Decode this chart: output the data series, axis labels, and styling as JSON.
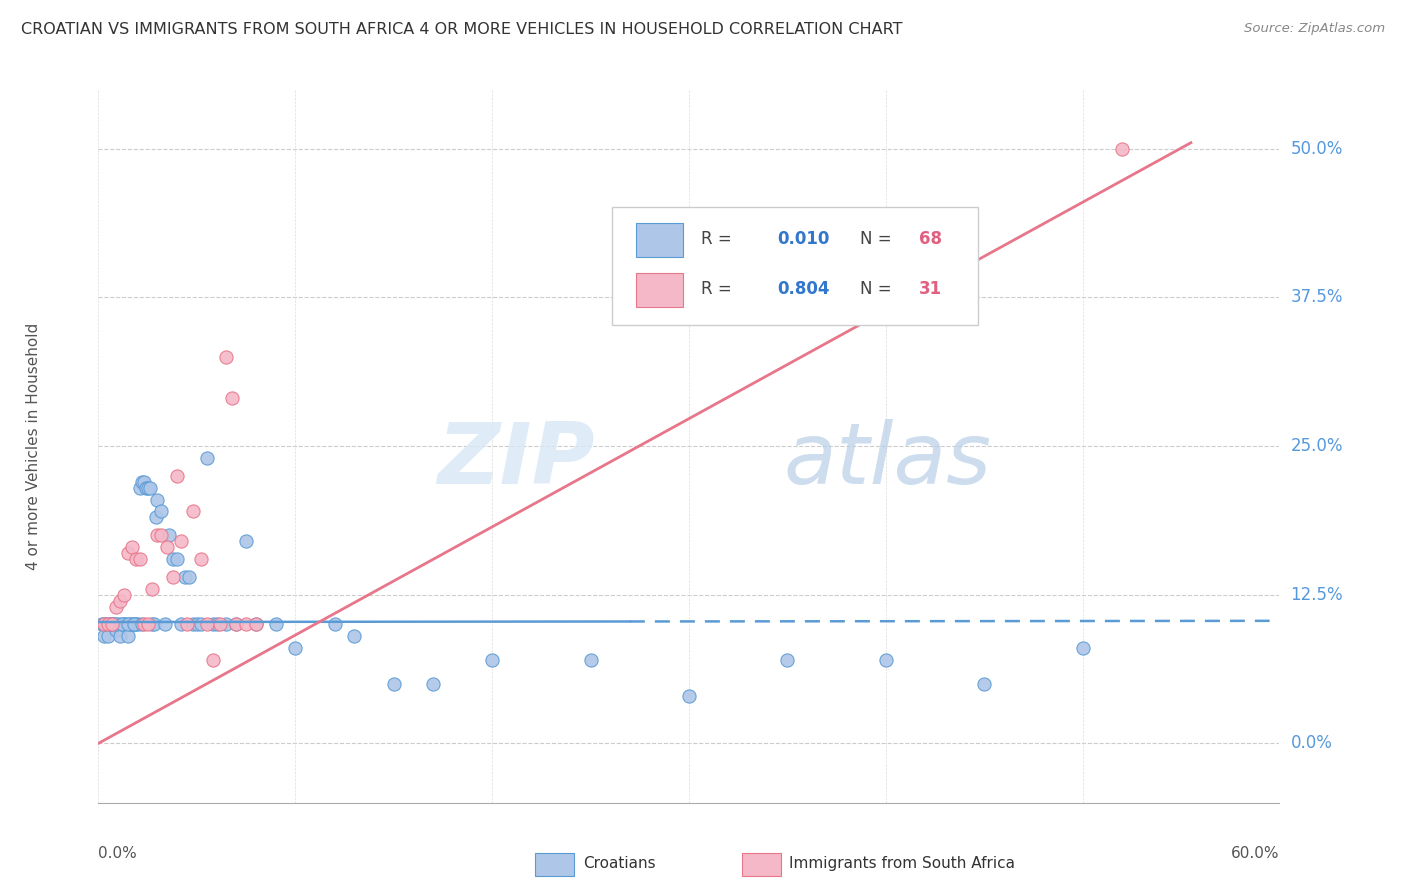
{
  "title": "CROATIAN VS IMMIGRANTS FROM SOUTH AFRICA 4 OR MORE VEHICLES IN HOUSEHOLD CORRELATION CHART",
  "source": "Source: ZipAtlas.com",
  "ylabel": "4 or more Vehicles in Household",
  "ytick_labels": [
    "0.0%",
    "12.5%",
    "25.0%",
    "37.5%",
    "50.0%"
  ],
  "ytick_positions": [
    0.0,
    0.125,
    0.25,
    0.375,
    0.5
  ],
  "xlim": [
    0.0,
    0.6
  ],
  "ylim": [
    -0.05,
    0.55
  ],
  "blue_color": "#aec6e8",
  "blue_edge_color": "#5b9bd5",
  "pink_color": "#f4b8c8",
  "pink_edge_color": "#e8768a",
  "blue_line_color": "#5b9bd5",
  "pink_line_color": "#e8768a",
  "blue_scatter_x": [
    0.002,
    0.003,
    0.004,
    0.005,
    0.006,
    0.007,
    0.008,
    0.009,
    0.01,
    0.011,
    0.012,
    0.013,
    0.014,
    0.015,
    0.016,
    0.017,
    0.018,
    0.019,
    0.02,
    0.021,
    0.022,
    0.023,
    0.024,
    0.025,
    0.026,
    0.027,
    0.028,
    0.029,
    0.03,
    0.032,
    0.034,
    0.036,
    0.038,
    0.04,
    0.042,
    0.044,
    0.046,
    0.048,
    0.05,
    0.052,
    0.055,
    0.058,
    0.06,
    0.065,
    0.07,
    0.075,
    0.08,
    0.09,
    0.1,
    0.12,
    0.13,
    0.15,
    0.17,
    0.2,
    0.25,
    0.3,
    0.35,
    0.4,
    0.45,
    0.5,
    0.003,
    0.005,
    0.007,
    0.009,
    0.012,
    0.015,
    0.018,
    0.022
  ],
  "blue_scatter_y": [
    0.1,
    0.09,
    0.1,
    0.09,
    0.1,
    0.1,
    0.1,
    0.095,
    0.1,
    0.09,
    0.1,
    0.1,
    0.1,
    0.09,
    0.1,
    0.1,
    0.1,
    0.1,
    0.1,
    0.215,
    0.22,
    0.22,
    0.215,
    0.215,
    0.215,
    0.1,
    0.1,
    0.19,
    0.205,
    0.195,
    0.1,
    0.175,
    0.155,
    0.155,
    0.1,
    0.14,
    0.14,
    0.1,
    0.1,
    0.1,
    0.24,
    0.1,
    0.1,
    0.1,
    0.1,
    0.17,
    0.1,
    0.1,
    0.08,
    0.1,
    0.09,
    0.05,
    0.05,
    0.07,
    0.07,
    0.04,
    0.07,
    0.07,
    0.05,
    0.08,
    0.1,
    0.1,
    0.1,
    0.1,
    0.1,
    0.1,
    0.1,
    0.1
  ],
  "pink_scatter_x": [
    0.003,
    0.005,
    0.007,
    0.009,
    0.011,
    0.013,
    0.015,
    0.017,
    0.019,
    0.021,
    0.023,
    0.025,
    0.027,
    0.03,
    0.032,
    0.035,
    0.038,
    0.04,
    0.042,
    0.045,
    0.048,
    0.052,
    0.055,
    0.058,
    0.062,
    0.065,
    0.068,
    0.07,
    0.075,
    0.08,
    0.52
  ],
  "pink_scatter_y": [
    0.1,
    0.1,
    0.1,
    0.115,
    0.12,
    0.125,
    0.16,
    0.165,
    0.155,
    0.155,
    0.1,
    0.1,
    0.13,
    0.175,
    0.175,
    0.165,
    0.14,
    0.225,
    0.17,
    0.1,
    0.195,
    0.155,
    0.1,
    0.07,
    0.1,
    0.325,
    0.29,
    0.1,
    0.1,
    0.1,
    0.5
  ],
  "blue_trend_x": [
    0.0,
    0.595
  ],
  "blue_trend_y": [
    0.102,
    0.103
  ],
  "blue_trend_solid_end": 0.27,
  "pink_trend_x": [
    0.0,
    0.555
  ],
  "pink_trend_y": [
    0.0,
    0.505
  ],
  "watermark_zip": "ZIP",
  "watermark_atlas": "atlas",
  "croatians_label": "Croatians",
  "immigrants_label": "Immigrants from South Africa"
}
